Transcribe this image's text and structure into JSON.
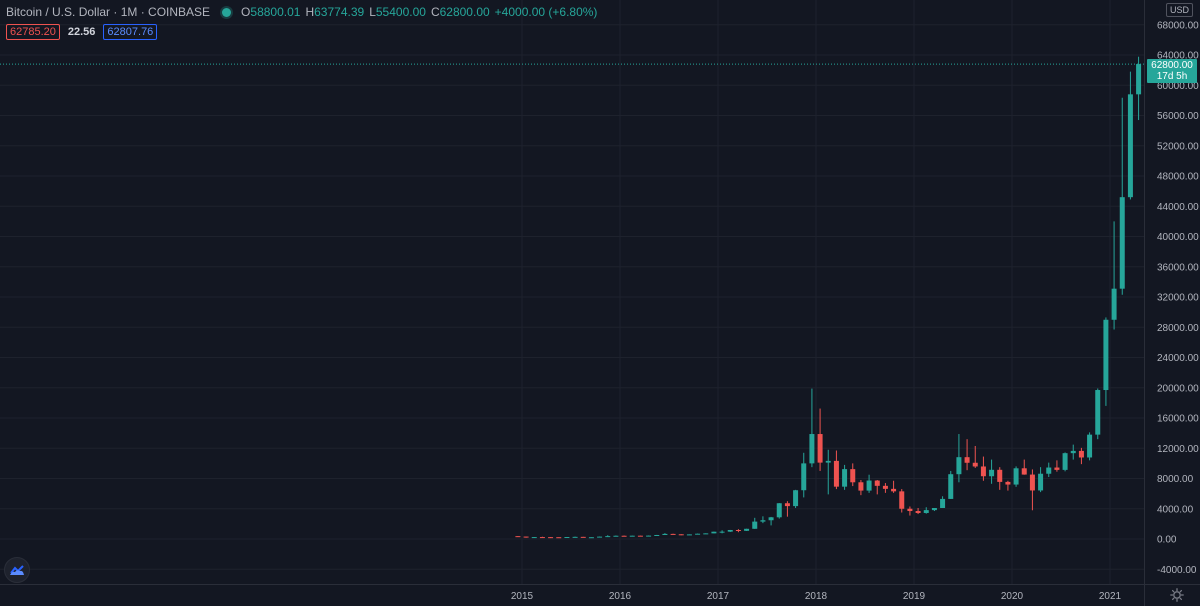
{
  "header": {
    "symbol": "Bitcoin / U.S. Dollar · 1M · COINBASE",
    "open_label": "O",
    "open": "58800.01",
    "high_label": "H",
    "high": "63774.39",
    "low_label": "L",
    "low": "55400.00",
    "close_label": "C",
    "close": "62800.00",
    "change": "+4000.00 (+6.80%)"
  },
  "quote": {
    "bid": "62785.20",
    "spread": "22.56",
    "ask": "62807.76"
  },
  "price_axis": {
    "currency": "USD"
  },
  "current_price": {
    "price": "62800.00",
    "countdown": "17d 5h"
  },
  "colors": {
    "up": "#26a69a",
    "down": "#ef5350",
    "background": "#131722",
    "grid": "#1e222d",
    "text": "#b2b5be"
  },
  "icons": {
    "logo": "tradingview-cloud-icon",
    "settings": "gear-icon",
    "status": "market-open-dot"
  },
  "chart_data": {
    "type": "candlestick",
    "title": "Bitcoin / U.S. Dollar · 1M · COINBASE",
    "xlabel": "",
    "ylabel": "",
    "ylim": [
      -6000,
      70000
    ],
    "y_ticks": [
      68000,
      64000,
      60000,
      56000,
      52000,
      48000,
      44000,
      40000,
      36000,
      32000,
      28000,
      24000,
      20000,
      16000,
      12000,
      8000,
      4000,
      0,
      -4000
    ],
    "x_ticks": [
      {
        "label": "2015",
        "x": 2015.0
      },
      {
        "label": "2016",
        "x": 2016.0
      },
      {
        "label": "2017",
        "x": 2017.0
      },
      {
        "label": "2018",
        "x": 2018.0
      },
      {
        "label": "2019",
        "x": 2019.0
      },
      {
        "label": "2020",
        "x": 2020.0
      },
      {
        "label": "2021",
        "x": 2021.0
      }
    ],
    "grid": true,
    "current_price": 62800,
    "candles": [
      {
        "d": "2014-12",
        "o": 375,
        "h": 380,
        "l": 300,
        "c": 320
      },
      {
        "d": "2015-01",
        "o": 320,
        "h": 320,
        "l": 170,
        "c": 217
      },
      {
        "d": "2015-02",
        "o": 217,
        "h": 265,
        "l": 200,
        "c": 254
      },
      {
        "d": "2015-03",
        "o": 254,
        "h": 300,
        "l": 235,
        "c": 244
      },
      {
        "d": "2015-04",
        "o": 244,
        "h": 260,
        "l": 210,
        "c": 236
      },
      {
        "d": "2015-05",
        "o": 236,
        "h": 245,
        "l": 228,
        "c": 230
      },
      {
        "d": "2015-06",
        "o": 230,
        "h": 268,
        "l": 220,
        "c": 263
      },
      {
        "d": "2015-07",
        "o": 263,
        "h": 315,
        "l": 255,
        "c": 284
      },
      {
        "d": "2015-08",
        "o": 284,
        "h": 285,
        "l": 200,
        "c": 230
      },
      {
        "d": "2015-09",
        "o": 230,
        "h": 245,
        "l": 225,
        "c": 236
      },
      {
        "d": "2015-10",
        "o": 236,
        "h": 330,
        "l": 235,
        "c": 314
      },
      {
        "d": "2015-11",
        "o": 314,
        "h": 500,
        "l": 300,
        "c": 378
      },
      {
        "d": "2015-12",
        "o": 378,
        "h": 465,
        "l": 350,
        "c": 430
      },
      {
        "d": "2016-01",
        "o": 430,
        "h": 460,
        "l": 350,
        "c": 368
      },
      {
        "d": "2016-02",
        "o": 368,
        "h": 440,
        "l": 365,
        "c": 437
      },
      {
        "d": "2016-03",
        "o": 437,
        "h": 440,
        "l": 395,
        "c": 416
      },
      {
        "d": "2016-04",
        "o": 416,
        "h": 470,
        "l": 410,
        "c": 448
      },
      {
        "d": "2016-05",
        "o": 448,
        "h": 540,
        "l": 440,
        "c": 530
      },
      {
        "d": "2016-06",
        "o": 530,
        "h": 780,
        "l": 530,
        "c": 673
      },
      {
        "d": "2016-07",
        "o": 673,
        "h": 700,
        "l": 600,
        "c": 624
      },
      {
        "d": "2016-08",
        "o": 624,
        "h": 630,
        "l": 500,
        "c": 575
      },
      {
        "d": "2016-09",
        "o": 575,
        "h": 610,
        "l": 570,
        "c": 609
      },
      {
        "d": "2016-10",
        "o": 609,
        "h": 720,
        "l": 605,
        "c": 700
      },
      {
        "d": "2016-11",
        "o": 700,
        "h": 750,
        "l": 690,
        "c": 745
      },
      {
        "d": "2016-12",
        "o": 745,
        "h": 975,
        "l": 745,
        "c": 966
      },
      {
        "d": "2017-01",
        "o": 966,
        "h": 1150,
        "l": 750,
        "c": 970
      },
      {
        "d": "2017-02",
        "o": 970,
        "h": 1200,
        "l": 930,
        "c": 1190
      },
      {
        "d": "2017-03",
        "o": 1190,
        "h": 1300,
        "l": 900,
        "c": 1080
      },
      {
        "d": "2017-04",
        "o": 1080,
        "h": 1360,
        "l": 1060,
        "c": 1350
      },
      {
        "d": "2017-05",
        "o": 1350,
        "h": 2800,
        "l": 1340,
        "c": 2300
      },
      {
        "d": "2017-06",
        "o": 2300,
        "h": 3000,
        "l": 2100,
        "c": 2480
      },
      {
        "d": "2017-07",
        "o": 2480,
        "h": 2920,
        "l": 1800,
        "c": 2870
      },
      {
        "d": "2017-08",
        "o": 2870,
        "h": 4750,
        "l": 2700,
        "c": 4730
      },
      {
        "d": "2017-09",
        "o": 4730,
        "h": 5000,
        "l": 2950,
        "c": 4350
      },
      {
        "d": "2017-10",
        "o": 4350,
        "h": 6500,
        "l": 4100,
        "c": 6450
      },
      {
        "d": "2017-11",
        "o": 6450,
        "h": 11400,
        "l": 5500,
        "c": 10000
      },
      {
        "d": "2017-12",
        "o": 10000,
        "h": 19891,
        "l": 9500,
        "c": 13880
      },
      {
        "d": "2018-01",
        "o": 13880,
        "h": 17250,
        "l": 9000,
        "c": 10100
      },
      {
        "d": "2018-02",
        "o": 10100,
        "h": 11800,
        "l": 5900,
        "c": 10330
      },
      {
        "d": "2018-03",
        "o": 10330,
        "h": 11700,
        "l": 6600,
        "c": 6920
      },
      {
        "d": "2018-04",
        "o": 6920,
        "h": 9800,
        "l": 6500,
        "c": 9240
      },
      {
        "d": "2018-05",
        "o": 9240,
        "h": 10000,
        "l": 7000,
        "c": 7500
      },
      {
        "d": "2018-06",
        "o": 7500,
        "h": 7800,
        "l": 5800,
        "c": 6400
      },
      {
        "d": "2018-07",
        "o": 6400,
        "h": 8500,
        "l": 6100,
        "c": 7730
      },
      {
        "d": "2018-08",
        "o": 7730,
        "h": 7800,
        "l": 5900,
        "c": 7030
      },
      {
        "d": "2018-09",
        "o": 7030,
        "h": 7400,
        "l": 6100,
        "c": 6630
      },
      {
        "d": "2018-10",
        "o": 6630,
        "h": 7700,
        "l": 6100,
        "c": 6300
      },
      {
        "d": "2018-11",
        "o": 6300,
        "h": 6600,
        "l": 3500,
        "c": 4000
      },
      {
        "d": "2018-12",
        "o": 4000,
        "h": 4300,
        "l": 3100,
        "c": 3700
      },
      {
        "d": "2019-01",
        "o": 3700,
        "h": 4100,
        "l": 3300,
        "c": 3440
      },
      {
        "d": "2019-02",
        "o": 3440,
        "h": 4200,
        "l": 3350,
        "c": 3820
      },
      {
        "d": "2019-03",
        "o": 3820,
        "h": 4100,
        "l": 3700,
        "c": 4100
      },
      {
        "d": "2019-04",
        "o": 4100,
        "h": 5650,
        "l": 4100,
        "c": 5300
      },
      {
        "d": "2019-05",
        "o": 5300,
        "h": 9000,
        "l": 5300,
        "c": 8570
      },
      {
        "d": "2019-06",
        "o": 8570,
        "h": 13880,
        "l": 7500,
        "c": 10820
      },
      {
        "d": "2019-07",
        "o": 10820,
        "h": 13200,
        "l": 9100,
        "c": 10080
      },
      {
        "d": "2019-08",
        "o": 10080,
        "h": 12300,
        "l": 9400,
        "c": 9590
      },
      {
        "d": "2019-09",
        "o": 9590,
        "h": 10900,
        "l": 7700,
        "c": 8300
      },
      {
        "d": "2019-10",
        "o": 8300,
        "h": 10500,
        "l": 7300,
        "c": 9150
      },
      {
        "d": "2019-11",
        "o": 9150,
        "h": 9500,
        "l": 6500,
        "c": 7550
      },
      {
        "d": "2019-12",
        "o": 7550,
        "h": 7700,
        "l": 6400,
        "c": 7200
      },
      {
        "d": "2020-01",
        "o": 7200,
        "h": 9600,
        "l": 6900,
        "c": 9350
      },
      {
        "d": "2020-02",
        "o": 9350,
        "h": 10500,
        "l": 8500,
        "c": 8520
      },
      {
        "d": "2020-03",
        "o": 8520,
        "h": 9200,
        "l": 3800,
        "c": 6420
      },
      {
        "d": "2020-04",
        "o": 6420,
        "h": 9500,
        "l": 6200,
        "c": 8630
      },
      {
        "d": "2020-05",
        "o": 8630,
        "h": 10100,
        "l": 8200,
        "c": 9450
      },
      {
        "d": "2020-06",
        "o": 9450,
        "h": 10400,
        "l": 8900,
        "c": 9140
      },
      {
        "d": "2020-07",
        "o": 9140,
        "h": 11450,
        "l": 8950,
        "c": 11350
      },
      {
        "d": "2020-08",
        "o": 11350,
        "h": 12480,
        "l": 10500,
        "c": 11650
      },
      {
        "d": "2020-09",
        "o": 11650,
        "h": 12050,
        "l": 9900,
        "c": 10780
      },
      {
        "d": "2020-10",
        "o": 10780,
        "h": 14100,
        "l": 10400,
        "c": 13800
      },
      {
        "d": "2020-11",
        "o": 13800,
        "h": 19900,
        "l": 13200,
        "c": 19700
      },
      {
        "d": "2020-12",
        "o": 19700,
        "h": 29300,
        "l": 17600,
        "c": 28990
      },
      {
        "d": "2021-01",
        "o": 28990,
        "h": 42000,
        "l": 27700,
        "c": 33100
      },
      {
        "d": "2021-02",
        "o": 33100,
        "h": 58350,
        "l": 32300,
        "c": 45200
      },
      {
        "d": "2021-03",
        "o": 45200,
        "h": 61800,
        "l": 44900,
        "c": 58800
      },
      {
        "d": "2021-04",
        "o": 58800.01,
        "h": 63774.39,
        "l": 55400,
        "c": 62800
      }
    ]
  }
}
